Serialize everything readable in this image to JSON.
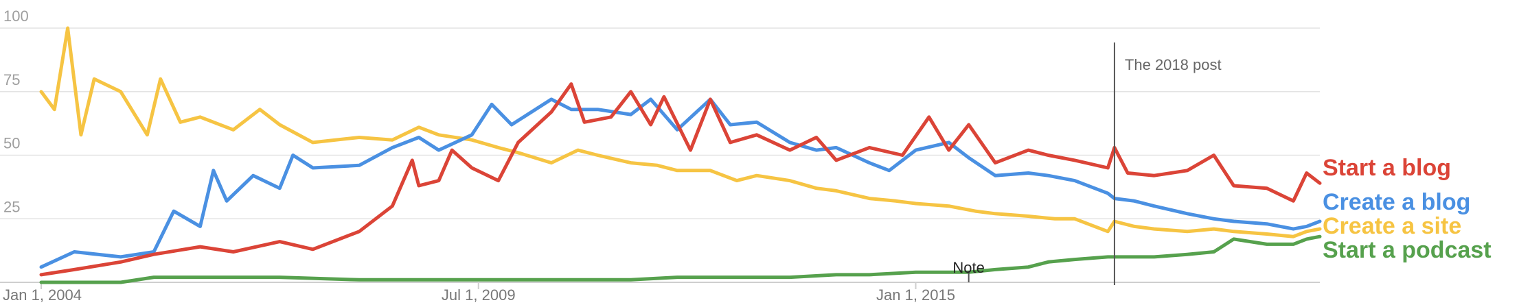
{
  "chart_data": {
    "type": "line",
    "title": "",
    "xlabel": "",
    "ylabel": "",
    "ylim": [
      0,
      100
    ],
    "yticks": [
      25,
      50,
      75,
      100
    ],
    "xticks": [
      "Jan 1, 2004",
      "Jul 1, 2009",
      "Jan 1, 2015"
    ],
    "xlim": [
      "2004-01",
      "2020-02"
    ],
    "grid": true,
    "legend": "right, at line ends",
    "annotations": [
      {
        "label": "The 2018 post",
        "x": "2017-07",
        "type": "vertical-line"
      },
      {
        "label": "Note",
        "x": "2015-09",
        "type": "marker"
      }
    ],
    "series": [
      {
        "name": "Start a blog",
        "color": "#db4437",
        "points": [
          [
            "2004-01",
            3
          ],
          [
            "2004-06",
            5
          ],
          [
            "2005-01",
            8
          ],
          [
            "2005-06",
            11
          ],
          [
            "2006-01",
            14
          ],
          [
            "2006-06",
            12
          ],
          [
            "2007-01",
            16
          ],
          [
            "2007-06",
            13
          ],
          [
            "2008-01",
            20
          ],
          [
            "2008-06",
            30
          ],
          [
            "2008-09",
            48
          ],
          [
            "2008-10",
            38
          ],
          [
            "2009-01",
            40
          ],
          [
            "2009-03",
            52
          ],
          [
            "2009-06",
            45
          ],
          [
            "2009-10",
            40
          ],
          [
            "2010-01",
            55
          ],
          [
            "2010-06",
            67
          ],
          [
            "2010-09",
            78
          ],
          [
            "2010-11",
            63
          ],
          [
            "2011-03",
            65
          ],
          [
            "2011-06",
            75
          ],
          [
            "2011-09",
            62
          ],
          [
            "2011-11",
            73
          ],
          [
            "2012-03",
            52
          ],
          [
            "2012-06",
            72
          ],
          [
            "2012-09",
            55
          ],
          [
            "2013-01",
            58
          ],
          [
            "2013-06",
            52
          ],
          [
            "2013-10",
            57
          ],
          [
            "2014-01",
            48
          ],
          [
            "2014-06",
            53
          ],
          [
            "2014-11",
            50
          ],
          [
            "2015-03",
            65
          ],
          [
            "2015-06",
            52
          ],
          [
            "2015-09",
            62
          ],
          [
            "2016-01",
            47
          ],
          [
            "2016-06",
            52
          ],
          [
            "2016-09",
            50
          ],
          [
            "2017-01",
            48
          ],
          [
            "2017-06",
            45
          ],
          [
            "2017-07",
            53
          ],
          [
            "2017-09",
            43
          ],
          [
            "2018-01",
            42
          ],
          [
            "2018-06",
            44
          ],
          [
            "2018-10",
            50
          ],
          [
            "2019-01",
            38
          ],
          [
            "2019-06",
            37
          ],
          [
            "2019-10",
            32
          ],
          [
            "2019-12",
            43
          ],
          [
            "2020-02",
            39
          ]
        ]
      },
      {
        "name": "Create a blog",
        "color": "#4a90e2",
        "points": [
          [
            "2004-01",
            6
          ],
          [
            "2004-06",
            12
          ],
          [
            "2005-01",
            10
          ],
          [
            "2005-06",
            12
          ],
          [
            "2005-09",
            28
          ],
          [
            "2006-01",
            22
          ],
          [
            "2006-03",
            44
          ],
          [
            "2006-05",
            32
          ],
          [
            "2006-09",
            42
          ],
          [
            "2007-01",
            37
          ],
          [
            "2007-03",
            50
          ],
          [
            "2007-06",
            45
          ],
          [
            "2008-01",
            46
          ],
          [
            "2008-06",
            53
          ],
          [
            "2008-10",
            57
          ],
          [
            "2009-01",
            52
          ],
          [
            "2009-06",
            58
          ],
          [
            "2009-09",
            70
          ],
          [
            "2009-12",
            62
          ],
          [
            "2010-06",
            72
          ],
          [
            "2010-09",
            68
          ],
          [
            "2011-01",
            68
          ],
          [
            "2011-06",
            66
          ],
          [
            "2011-09",
            72
          ],
          [
            "2012-01",
            60
          ],
          [
            "2012-06",
            72
          ],
          [
            "2012-09",
            62
          ],
          [
            "2013-01",
            63
          ],
          [
            "2013-06",
            55
          ],
          [
            "2013-10",
            52
          ],
          [
            "2014-01",
            53
          ],
          [
            "2014-06",
            47
          ],
          [
            "2014-09",
            44
          ],
          [
            "2015-01",
            52
          ],
          [
            "2015-06",
            55
          ],
          [
            "2015-09",
            49
          ],
          [
            "2016-01",
            42
          ],
          [
            "2016-06",
            43
          ],
          [
            "2016-09",
            42
          ],
          [
            "2017-01",
            40
          ],
          [
            "2017-06",
            35
          ],
          [
            "2017-07",
            33
          ],
          [
            "2017-10",
            32
          ],
          [
            "2018-01",
            30
          ],
          [
            "2018-06",
            27
          ],
          [
            "2018-10",
            25
          ],
          [
            "2019-01",
            24
          ],
          [
            "2019-06",
            23
          ],
          [
            "2019-10",
            21
          ],
          [
            "2019-12",
            22
          ],
          [
            "2020-02",
            24
          ]
        ]
      },
      {
        "name": "Create a site",
        "color": "#f6c443",
        "points": [
          [
            "2004-01",
            75
          ],
          [
            "2004-03",
            68
          ],
          [
            "2004-05",
            100
          ],
          [
            "2004-07",
            58
          ],
          [
            "2004-09",
            80
          ],
          [
            "2005-01",
            75
          ],
          [
            "2005-05",
            58
          ],
          [
            "2005-07",
            80
          ],
          [
            "2005-10",
            63
          ],
          [
            "2006-01",
            65
          ],
          [
            "2006-06",
            60
          ],
          [
            "2006-10",
            68
          ],
          [
            "2007-01",
            62
          ],
          [
            "2007-06",
            55
          ],
          [
            "2008-01",
            57
          ],
          [
            "2008-06",
            56
          ],
          [
            "2008-10",
            61
          ],
          [
            "2009-01",
            58
          ],
          [
            "2009-06",
            56
          ],
          [
            "2009-10",
            53
          ],
          [
            "2010-01",
            51
          ],
          [
            "2010-06",
            47
          ],
          [
            "2010-10",
            52
          ],
          [
            "2011-01",
            50
          ],
          [
            "2011-06",
            47
          ],
          [
            "2011-10",
            46
          ],
          [
            "2012-01",
            44
          ],
          [
            "2012-06",
            44
          ],
          [
            "2012-10",
            40
          ],
          [
            "2013-01",
            42
          ],
          [
            "2013-06",
            40
          ],
          [
            "2013-10",
            37
          ],
          [
            "2014-01",
            36
          ],
          [
            "2014-06",
            33
          ],
          [
            "2014-10",
            32
          ],
          [
            "2015-01",
            31
          ],
          [
            "2015-06",
            30
          ],
          [
            "2015-10",
            28
          ],
          [
            "2016-01",
            27
          ],
          [
            "2016-06",
            26
          ],
          [
            "2016-10",
            25
          ],
          [
            "2017-01",
            25
          ],
          [
            "2017-06",
            20
          ],
          [
            "2017-07",
            24
          ],
          [
            "2017-10",
            22
          ],
          [
            "2018-01",
            21
          ],
          [
            "2018-06",
            20
          ],
          [
            "2018-10",
            21
          ],
          [
            "2019-01",
            20
          ],
          [
            "2019-06",
            19
          ],
          [
            "2019-10",
            18
          ],
          [
            "2019-12",
            20
          ],
          [
            "2020-02",
            21
          ]
        ]
      },
      {
        "name": "Start a podcast",
        "color": "#56a14d",
        "points": [
          [
            "2004-01",
            0
          ],
          [
            "2005-01",
            0
          ],
          [
            "2005-06",
            2
          ],
          [
            "2006-01",
            2
          ],
          [
            "2006-06",
            2
          ],
          [
            "2007-01",
            2
          ],
          [
            "2008-01",
            1
          ],
          [
            "2009-01",
            1
          ],
          [
            "2009-06",
            1
          ],
          [
            "2010-01",
            1
          ],
          [
            "2010-06",
            1
          ],
          [
            "2011-01",
            1
          ],
          [
            "2011-06",
            1
          ],
          [
            "2012-01",
            2
          ],
          [
            "2012-06",
            2
          ],
          [
            "2013-01",
            2
          ],
          [
            "2013-06",
            2
          ],
          [
            "2014-01",
            3
          ],
          [
            "2014-06",
            3
          ],
          [
            "2015-01",
            4
          ],
          [
            "2015-06",
            4
          ],
          [
            "2015-09",
            4
          ],
          [
            "2016-01",
            5
          ],
          [
            "2016-06",
            6
          ],
          [
            "2016-09",
            8
          ],
          [
            "2017-01",
            9
          ],
          [
            "2017-06",
            10
          ],
          [
            "2017-07",
            10
          ],
          [
            "2018-01",
            10
          ],
          [
            "2018-06",
            11
          ],
          [
            "2018-10",
            12
          ],
          [
            "2019-01",
            17
          ],
          [
            "2019-06",
            15
          ],
          [
            "2019-10",
            15
          ],
          [
            "2019-12",
            17
          ],
          [
            "2020-02",
            18
          ]
        ]
      }
    ]
  }
}
